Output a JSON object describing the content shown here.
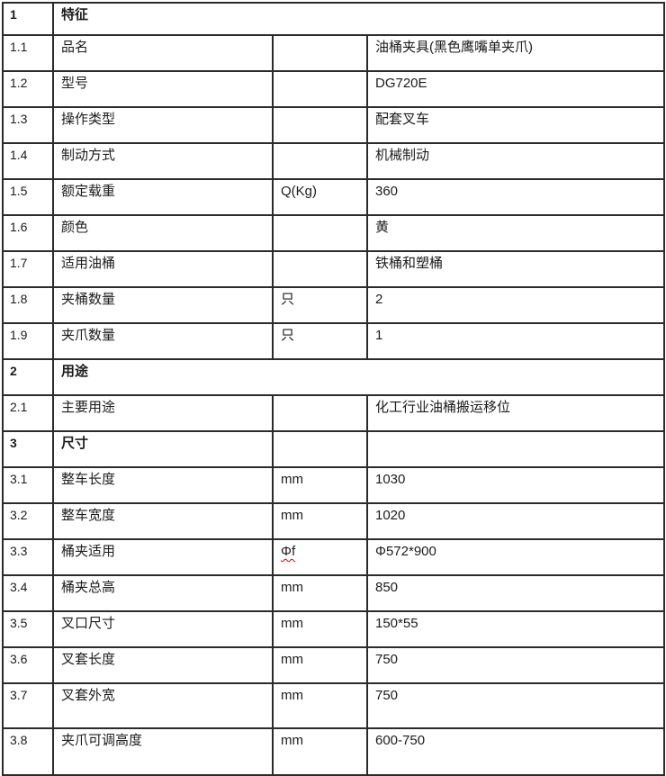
{
  "colors": {
    "background": "#ffffff",
    "border": "#2b2b2b",
    "text": "#1c1c1c",
    "misspell_underline": "#d10000"
  },
  "table": {
    "rows": [
      {
        "num": "1",
        "label": "特征",
        "unit": "",
        "value": ""
      },
      {
        "num": "1.1",
        "label": "品名",
        "unit": "",
        "value": "油桶夹具(黑色鹰嘴单夹爪)"
      },
      {
        "num": "1.2",
        "label": "型号",
        "unit": "",
        "value": "DG720E"
      },
      {
        "num": "1.3",
        "label": "操作类型",
        "unit": "",
        "value": "配套叉车"
      },
      {
        "num": "1.4",
        "label": "制动方式",
        "unit": "",
        "value": "机械制动"
      },
      {
        "num": "1.5",
        "label": "额定载重",
        "unit": "Q(Kg)",
        "value": "360"
      },
      {
        "num": "1.6",
        "label": "颜色",
        "unit": "",
        "value": "黄"
      },
      {
        "num": "1.7",
        "label": "适用油桶",
        "unit": "",
        "value": "铁桶和塑桶"
      },
      {
        "num": "1.8",
        "label": "夹桶数量",
        "unit": "只",
        "value": "2"
      },
      {
        "num": "1.9",
        "label": "夹爪数量",
        "unit": "只",
        "value": "1"
      },
      {
        "num": "2",
        "label": "用途",
        "unit": "",
        "value": ""
      },
      {
        "num": "2.1",
        "label": "主要用途",
        "unit": "",
        "value": "化工行业油桶搬运移位"
      },
      {
        "num": "3",
        "label": "尺寸",
        "unit": "",
        "value": ""
      },
      {
        "num": "3.1",
        "label": "整车长度",
        "unit": "mm",
        "value": "1030"
      },
      {
        "num": "3.2",
        "label": "整车宽度",
        "unit": "mm",
        "value": "1020"
      },
      {
        "num": "3.3",
        "label": "桶夹适用",
        "unit": "Φf",
        "value": "Φ572*900"
      },
      {
        "num": "3.4",
        "label": "桶夹总高",
        "unit": "mm",
        "value": "850"
      },
      {
        "num": "3.5",
        "label": "叉口尺寸",
        "unit": "mm",
        "value": "150*55"
      },
      {
        "num": "3.6",
        "label": "叉套长度",
        "unit": "mm",
        "value": "750"
      },
      {
        "num": "3.7",
        "label": "叉套外宽",
        "unit": "mm",
        "value": "750"
      },
      {
        "num": "3.8",
        "label": "夹爪可调高度",
        "unit": "mm",
        "value": "600-750"
      }
    ]
  }
}
